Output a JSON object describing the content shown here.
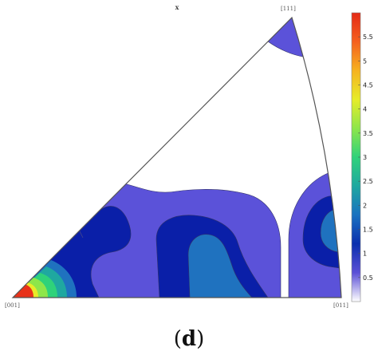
{
  "figure": {
    "axis_letter": "x",
    "corners": {
      "top": "[111]",
      "bottom_left": "[001]",
      "bottom_right": "[011]"
    },
    "panel_label": {
      "open": "(",
      "letter": "d",
      "close": ")"
    }
  },
  "colorbar": {
    "min": 0,
    "max": 6,
    "ticks": [
      "0.5",
      "1",
      "1.5",
      "2",
      "2.5",
      "3",
      "3.5",
      "4",
      "4.5",
      "5",
      "5.5"
    ],
    "tick_values": [
      0.5,
      1,
      1.5,
      2,
      2.5,
      3,
      3.5,
      4,
      4.5,
      5,
      5.5
    ],
    "colormap": [
      "#ffffff",
      "#5b4fd6",
      "#0a2fae",
      "#1a72c0",
      "#1fa8a0",
      "#2fd27a",
      "#8ee64a",
      "#e6ec2a",
      "#f6b21f",
      "#f5601f",
      "#e42a16"
    ]
  },
  "contour_colors": {
    "level_1": "#5b52d9",
    "level_2": "#0a1fa8",
    "level_3": "#1f72bf",
    "level_4": "#1fa8a0",
    "level_5": "#2fd27a",
    "level_6": "#8ee64a",
    "level_7": "#e8ec28",
    "level_8": "#f6b21f",
    "level_9": "#e8321a"
  }
}
